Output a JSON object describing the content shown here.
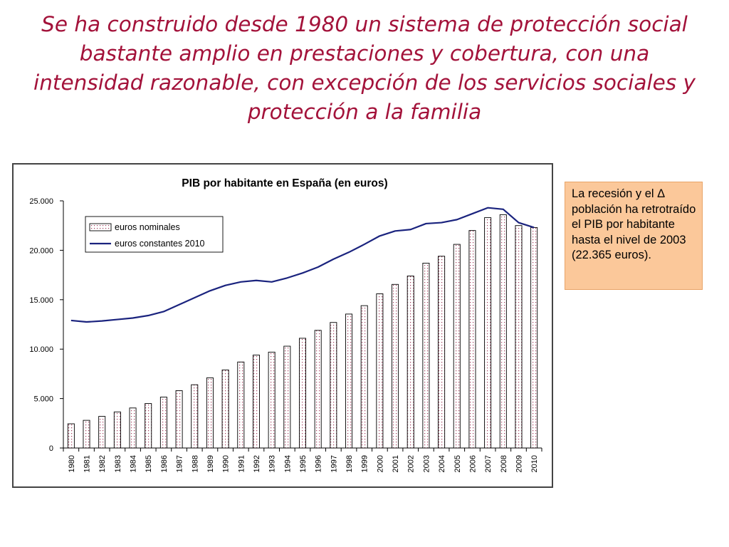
{
  "slide": {
    "title": "Se ha construido desde 1980 un sistema de protección social bastante amplio en prestaciones y cobertura, con una intensidad razonable, con excepción de los servicios sociales y protección a la familia"
  },
  "note": {
    "text": "La recesión y el Δ población ha retrotraído el PIB por habitante hasta el nivel de 2003 (22.365 euros)."
  },
  "colors": {
    "title": "#a3123a",
    "line": "#1a237e",
    "note_bg": "#fbc89a"
  },
  "chart_data": {
    "type": "bar",
    "title": "PIB por habitante en España (en euros)",
    "xlabel": "",
    "ylabel": "",
    "ylim": [
      0,
      25000
    ],
    "yticks": [
      0,
      5000,
      10000,
      15000,
      20000,
      25000
    ],
    "ytick_labels": [
      "0",
      "5.000",
      "10.000",
      "15.000",
      "20.000",
      "25.000"
    ],
    "grid": false,
    "legend_position": "top-left",
    "categories": [
      "1980",
      "1981",
      "1982",
      "1983",
      "1984",
      "1985",
      "1986",
      "1987",
      "1988",
      "1989",
      "1990",
      "1991",
      "1992",
      "1993",
      "1994",
      "1995",
      "1996",
      "1997",
      "1998",
      "1999",
      "2000",
      "2001",
      "2002",
      "2003",
      "2004",
      "2005",
      "2006",
      "2007",
      "2008",
      "2009",
      "2010"
    ],
    "series": [
      {
        "name": "euros nominales",
        "kind": "bar",
        "values": [
          2450,
          2800,
          3200,
          3650,
          4050,
          4500,
          5150,
          5800,
          6400,
          7100,
          7900,
          8700,
          9400,
          9700,
          10300,
          11100,
          11900,
          12700,
          13550,
          14400,
          15600,
          16550,
          17400,
          18700,
          19400,
          20600,
          22000,
          23300,
          23600,
          22500,
          22300
        ]
      },
      {
        "name": "euros constantes 2010",
        "kind": "line",
        "values": [
          12900,
          12750,
          12850,
          13000,
          13150,
          13400,
          13800,
          14500,
          15200,
          15900,
          16450,
          16800,
          16950,
          16800,
          17200,
          17700,
          18300,
          19100,
          19800,
          20600,
          21450,
          21950,
          22100,
          22700,
          22800,
          23100,
          23700,
          24300,
          24150,
          22800,
          22300
        ]
      }
    ]
  }
}
